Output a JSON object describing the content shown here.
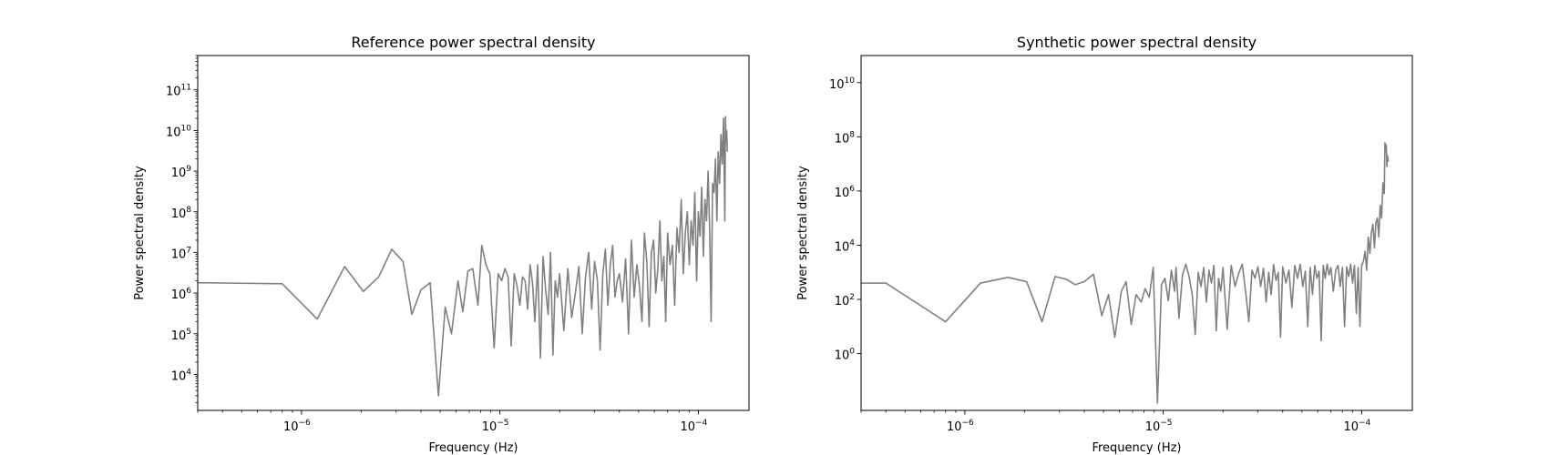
{
  "chart_data": [
    {
      "type": "line",
      "title": "Reference power spectral density",
      "xlabel": "Frequency (Hz)",
      "ylabel": "Power spectral density",
      "xscale": "log",
      "yscale": "log",
      "xlim": [
        3e-07,
        0.00018
      ],
      "ylim": [
        1300.0,
        700000000000.0
      ],
      "xticks": [
        {
          "value": 1e-06,
          "base": "10",
          "exp": "−6"
        },
        {
          "value": 1e-05,
          "base": "10",
          "exp": "−5"
        },
        {
          "value": 0.0001,
          "base": "10",
          "exp": "−4"
        }
      ],
      "yticks": [
        {
          "value": 10000.0,
          "base": "10",
          "exp": "4"
        },
        {
          "value": 100000.0,
          "base": "10",
          "exp": "5"
        },
        {
          "value": 1000000.0,
          "base": "10",
          "exp": "6"
        },
        {
          "value": 10000000.0,
          "base": "10",
          "exp": "7"
        },
        {
          "value": 100000000.0,
          "base": "10",
          "exp": "8"
        },
        {
          "value": 1000000000.0,
          "base": "10",
          "exp": "9"
        },
        {
          "value": 10000000000.0,
          "base": "10",
          "exp": "10"
        },
        {
          "value": 100000000000.0,
          "base": "10",
          "exp": "11"
        }
      ],
      "grid": false,
      "series": [
        {
          "color": "#808080",
          "x": [
            3e-07,
            8e-07,
            1.2e-06,
            1.65e-06,
            2.05e-06,
            2.45e-06,
            2.85e-06,
            3.25e-06,
            3.6e-06,
            4e-06,
            4.45e-06,
            4.9e-06,
            5.3e-06,
            5.7e-06,
            6.15e-06,
            6.5e-06,
            6.9e-06,
            7.3e-06,
            7.75e-06,
            8.1e-06,
            8.5e-06,
            8.9e-06,
            9.35e-06,
            9.8e-06,
            1.02e-05,
            1.06e-05,
            1.1e-05,
            1.14e-05,
            1.18e-05,
            1.22e-05,
            1.26e-05,
            1.3e-05,
            1.34e-05,
            1.38e-05,
            1.42e-05,
            1.46e-05,
            1.5e-05,
            1.55e-05,
            1.6e-05,
            1.65e-05,
            1.7e-05,
            1.75e-05,
            1.8e-05,
            1.85e-05,
            1.9e-05,
            1.95e-05,
            2e-05,
            2.1e-05,
            2.2e-05,
            2.3e-05,
            2.4e-05,
            2.5e-05,
            2.6e-05,
            2.7e-05,
            2.8e-05,
            2.9e-05,
            3e-05,
            3.1e-05,
            3.2e-05,
            3.3e-05,
            3.4e-05,
            3.5e-05,
            3.6e-05,
            3.7e-05,
            3.8e-05,
            3.9e-05,
            4e-05,
            4.15e-05,
            4.3e-05,
            4.45e-05,
            4.6e-05,
            4.75e-05,
            4.9e-05,
            5.05e-05,
            5.2e-05,
            5.35e-05,
            5.5e-05,
            5.65e-05,
            5.8e-05,
            5.95e-05,
            6.1e-05,
            6.25e-05,
            6.4e-05,
            6.55e-05,
            6.7e-05,
            6.85e-05,
            7e-05,
            7.2e-05,
            7.4e-05,
            7.6e-05,
            7.8e-05,
            8e-05,
            8.2e-05,
            8.4e-05,
            8.6e-05,
            8.8e-05,
            9e-05,
            9.2e-05,
            9.4e-05,
            9.6e-05,
            9.8e-05,
            0.0001,
            0.000102,
            0.000104,
            0.000106,
            0.000108,
            0.00011,
            0.000112,
            0.000114,
            0.000116,
            0.000118,
            0.00012,
            0.000122,
            0.000124,
            0.000126,
            0.000128,
            0.00013,
            0.000132,
            0.000134,
            0.000136,
            0.000137,
            0.000138,
            0.000139,
            0.00014
          ],
          "y": [
            1800000.0,
            1700000.0,
            230000.0,
            4500000.0,
            1100000.0,
            2500000.0,
            12000000.0,
            6000000.0,
            300000.0,
            1200000.0,
            1800000.0,
            3000.0,
            450000.0,
            100000.0,
            2000000.0,
            350000.0,
            3500000.0,
            4000000.0,
            500000.0,
            15000000.0,
            5000000.0,
            3000000.0,
            45000.0,
            3000000.0,
            2000000.0,
            4000000.0,
            2500000.0,
            50000.0,
            3000000.0,
            1500000.0,
            500000.0,
            2500000.0,
            2000000.0,
            400000.0,
            5000000.0,
            1800000.0,
            200000.0,
            5000000.0,
            25000.0,
            8000000.0,
            1200000.0,
            300000.0,
            10000000.0,
            30000.0,
            2000000.0,
            800000.0,
            3000000.0,
            120000.0,
            4000000.0,
            250000.0,
            1000000.0,
            4500000.0,
            100000.0,
            2500000.0,
            10000000.0,
            400000.0,
            6000000.0,
            2000000.0,
            40000.0,
            3000000.0,
            12000000.0,
            500000.0,
            5000000.0,
            15000000.0,
            800000.0,
            2000000.0,
            3000000.0,
            600000.0,
            7000000.0,
            100000.0,
            20000000.0,
            800000.0,
            5000000.0,
            1500000.0,
            200000.0,
            30000000.0,
            6000000.0,
            150000.0,
            10000000.0,
            20000000.0,
            1000000.0,
            4000000.0,
            60000000.0,
            2000000.0,
            8000000.0,
            200000.0,
            30000000.0,
            5000000.0,
            15000000.0,
            500000.0,
            40000000.0,
            10000000.0,
            200000000.0,
            3000000.0,
            30000000.0,
            100000000.0,
            5000000.0,
            60000000.0,
            15000000.0,
            300000000.0,
            2000000.0,
            100000000.0,
            25000000.0,
            400000000.0,
            8000000.0,
            200000000.0,
            60000000.0,
            1000000000.0,
            40000000.0,
            200000.0,
            500000000.0,
            300000000.0,
            2000000000.0,
            60000000.0,
            3000000000.0,
            500000000.0,
            8000000000.0,
            1500000000.0,
            20000000000.0,
            60000000.0,
            22000000000.0,
            5000000000.0,
            10000000000.0,
            3000000000.0
          ]
        }
      ]
    },
    {
      "type": "line",
      "title": "Synthetic power spectral density",
      "xlabel": "Frequency (Hz)",
      "ylabel": "Power spectral density",
      "xscale": "log",
      "yscale": "log",
      "xlim": [
        3e-07,
        0.00018
      ],
      "ylim": [
        0.008,
        100000000000.0
      ],
      "xticks": [
        {
          "value": 1e-06,
          "base": "10",
          "exp": "−6"
        },
        {
          "value": 1e-05,
          "base": "10",
          "exp": "−5"
        },
        {
          "value": 0.0001,
          "base": "10",
          "exp": "−4"
        }
      ],
      "yticks": [
        {
          "value": 1,
          "base": "10",
          "exp": "0"
        },
        {
          "value": 100,
          "base": "10",
          "exp": "2"
        },
        {
          "value": 10000.0,
          "base": "10",
          "exp": "4"
        },
        {
          "value": 1000000.0,
          "base": "10",
          "exp": "6"
        },
        {
          "value": 100000000.0,
          "base": "10",
          "exp": "8"
        },
        {
          "value": 10000000000.0,
          "base": "10",
          "exp": "10"
        }
      ],
      "grid": false,
      "series": [
        {
          "color": "#808080",
          "x": [
            3e-07,
            4e-07,
            8e-07,
            1.2e-06,
            1.65e-06,
            2.05e-06,
            2.45e-06,
            2.85e-06,
            3.25e-06,
            3.6e-06,
            4e-06,
            4.45e-06,
            4.9e-06,
            5.3e-06,
            5.7e-06,
            6.15e-06,
            6.5e-06,
            6.9e-06,
            7.3e-06,
            7.75e-06,
            8.1e-06,
            8.5e-06,
            8.9e-06,
            9.35e-06,
            9.8e-06,
            1.02e-05,
            1.06e-05,
            1.1e-05,
            1.14e-05,
            1.16e-05,
            1.2e-05,
            1.25e-05,
            1.3e-05,
            1.35e-05,
            1.4e-05,
            1.45e-05,
            1.5e-05,
            1.55e-05,
            1.6e-05,
            1.65e-05,
            1.7e-05,
            1.75e-05,
            1.8e-05,
            1.85e-05,
            1.9e-05,
            1.95e-05,
            2e-05,
            2.1e-05,
            2.2e-05,
            2.3e-05,
            2.4e-05,
            2.5e-05,
            2.6e-05,
            2.7e-05,
            2.8e-05,
            2.9e-05,
            3e-05,
            3.1e-05,
            3.2e-05,
            3.3e-05,
            3.4e-05,
            3.5e-05,
            3.6e-05,
            3.7e-05,
            3.8e-05,
            3.9e-05,
            4e-05,
            4.15e-05,
            4.3e-05,
            4.45e-05,
            4.6e-05,
            4.75e-05,
            4.9e-05,
            5.05e-05,
            5.2e-05,
            5.35e-05,
            5.5e-05,
            5.65e-05,
            5.8e-05,
            5.95e-05,
            6.1e-05,
            6.25e-05,
            6.4e-05,
            6.55e-05,
            6.7e-05,
            6.85e-05,
            7e-05,
            7.2e-05,
            7.4e-05,
            7.6e-05,
            7.8e-05,
            8e-05,
            8.2e-05,
            8.4e-05,
            8.6e-05,
            8.8e-05,
            9e-05,
            9.2e-05,
            9.4e-05,
            9.6e-05,
            9.8e-05,
            0.0001,
            0.000102,
            0.000104,
            0.000106,
            0.000108,
            0.00011,
            0.000112,
            0.000114,
            0.000116,
            0.000118,
            0.00012,
            0.000122,
            0.000124,
            0.000126,
            0.000128,
            0.00013,
            0.000131,
            0.000132,
            0.000133,
            0.000134,
            0.000135,
            0.000136
          ],
          "y": [
            400,
            400,
            15,
            400,
            650,
            450,
            15,
            700,
            550,
            350,
            450,
            850,
            25,
            150,
            4,
            200,
            450,
            12,
            150,
            80,
            250,
            120,
            1500,
            0.015,
            350,
            600,
            90,
            1200,
            200,
            1500,
            20,
            800,
            2000,
            700,
            150,
            5,
            1000,
            300,
            1500,
            80,
            1200,
            400,
            1800,
            7,
            600,
            200,
            1500,
            8,
            1800,
            300,
            900,
            2000,
            200,
            15,
            1200,
            600,
            1600,
            300,
            1400,
            80,
            1000,
            150,
            1900,
            500,
            1000,
            4,
            1600,
            400,
            1200,
            50,
            1800,
            600,
            2000,
            300,
            1100,
            10,
            1500,
            150,
            1800,
            600,
            1100,
            3,
            1800,
            600,
            2000,
            800,
            1500,
            200,
            1200,
            1800,
            300,
            1500,
            10,
            1600,
            700,
            2000,
            400,
            1800,
            30,
            1500,
            10,
            1800,
            2500,
            6000,
            1200,
            20000,
            5000,
            30000,
            60000,
            8000,
            70000,
            100000,
            20000,
            300000,
            100000,
            2000000,
            800000,
            60000000,
            30000000,
            50000000,
            8000000,
            20000000,
            12000000
          ]
        }
      ]
    }
  ]
}
